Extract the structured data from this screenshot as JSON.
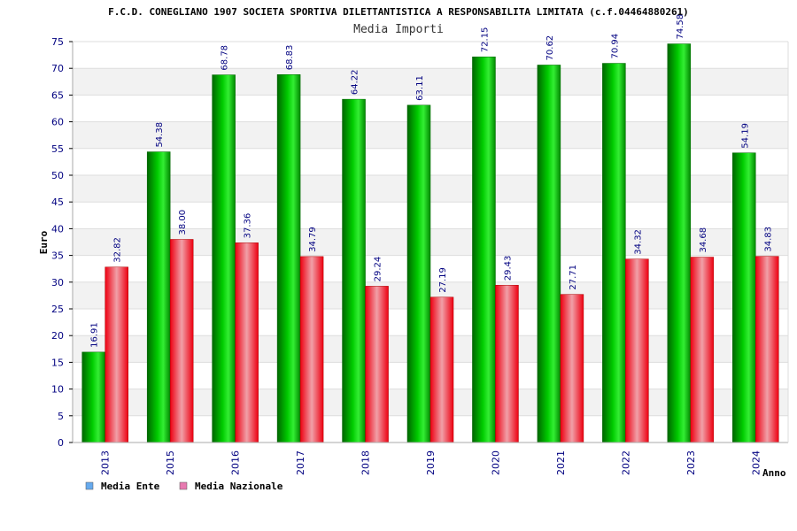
{
  "chart_data": {
    "type": "bar",
    "title": "F.C.D. CONEGLIANO 1907 SOCIETA SPORTIVA DILETTANTISTICA A RESPONSABILITA LIMITATA (c.f.04464880261)",
    "subtitle": "Media Importi",
    "xlabel": "Anno",
    "ylabel": "Euro",
    "ylim": [
      0,
      75
    ],
    "yticks": [
      0,
      5,
      10,
      15,
      20,
      25,
      30,
      35,
      40,
      45,
      50,
      55,
      60,
      65,
      70,
      75
    ],
    "grid": true,
    "legend_position": "bottom-left",
    "categories": [
      "2013",
      "2015",
      "2016",
      "2017",
      "2018",
      "2019",
      "2020",
      "2021",
      "2022",
      "2023",
      "2024"
    ],
    "series": [
      {
        "name": "Media Ente",
        "color": "#00b000",
        "legend_color": "#66aaee",
        "values": [
          16.91,
          54.38,
          68.78,
          68.83,
          64.22,
          63.11,
          72.15,
          70.62,
          70.94,
          74.58,
          54.19
        ],
        "labels": [
          "16.91",
          "54.38",
          "68.78",
          "68.83",
          "64.22",
          "63.11",
          "72.15",
          "70.62",
          "70.94",
          "74.58",
          "54.19"
        ]
      },
      {
        "name": "Media Nazionale",
        "color": "#ee1122",
        "legend_color": "#e87ab0",
        "values": [
          32.82,
          38.0,
          37.36,
          34.79,
          29.24,
          27.19,
          29.43,
          27.71,
          34.32,
          34.68,
          34.83
        ],
        "labels": [
          "32.82",
          "38.00",
          "37.36",
          "34.79",
          "29.24",
          "27.19",
          "29.43",
          "27.71",
          "34.32",
          "34.68",
          "34.83"
        ]
      }
    ]
  }
}
